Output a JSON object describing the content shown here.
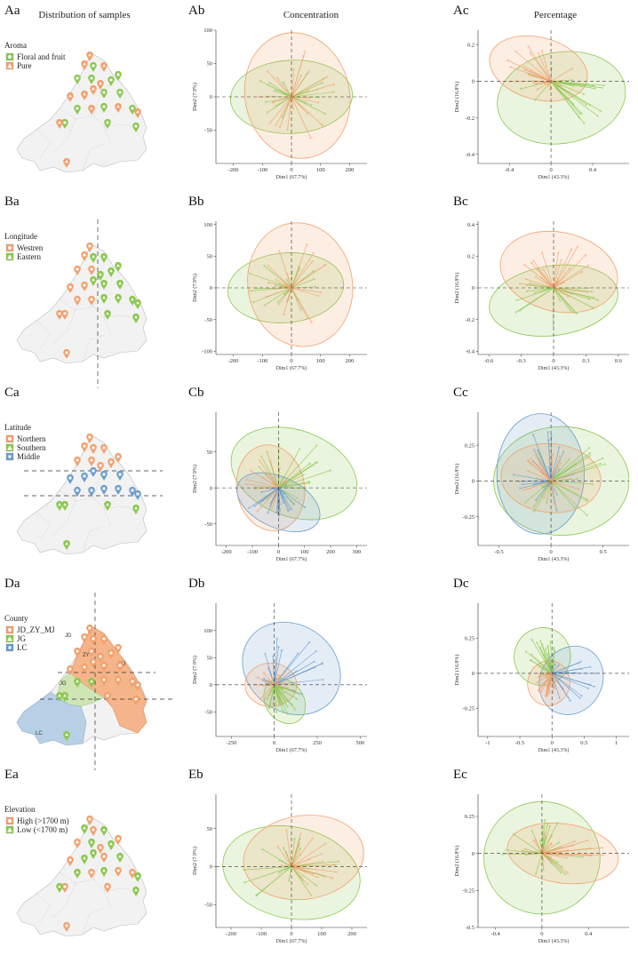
{
  "colors": {
    "orange": "#f2a06c",
    "green": "#8cc850",
    "blue": "#6a9cce",
    "map_fill": "#f2f2f2",
    "map_edge": "#bdbdbd"
  },
  "column_titles": {
    "a": "Distribution of samples",
    "b": "Concentration",
    "c": "Percentage"
  },
  "rows": [
    {
      "id": "A",
      "labels": {
        "a": "Aa",
        "b": "Ab",
        "c": "Ac"
      },
      "legend": {
        "title": "Aroma",
        "entries": [
          {
            "name": "Floral and fruit",
            "color": "green",
            "shape": "circle"
          },
          {
            "name": "Pure",
            "color": "orange",
            "shape": "triangle"
          }
        ]
      }
    },
    {
      "id": "B",
      "labels": {
        "a": "Ba",
        "b": "Bb",
        "c": "Bc"
      },
      "legend": {
        "title": "Longitude",
        "entries": [
          {
            "name": "Westren",
            "color": "orange",
            "shape": "circle"
          },
          {
            "name": "Eastern",
            "color": "green",
            "shape": "triangle"
          }
        ]
      }
    },
    {
      "id": "C",
      "labels": {
        "a": "Ca",
        "b": "Cb",
        "c": "Cc"
      },
      "legend": {
        "title": "Latitude",
        "entries": [
          {
            "name": "Northern",
            "color": "orange",
            "shape": "circle"
          },
          {
            "name": "Southern",
            "color": "green",
            "shape": "triangle"
          },
          {
            "name": "Middle",
            "color": "blue",
            "shape": "square"
          }
        ]
      }
    },
    {
      "id": "D",
      "labels": {
        "a": "Da",
        "b": "Db",
        "c": "Dc"
      },
      "legend": {
        "title": "County",
        "entries": [
          {
            "name": "JD_ZY_MJ",
            "color": "orange",
            "shape": "circle"
          },
          {
            "name": "JG",
            "color": "green",
            "shape": "triangle"
          },
          {
            "name": "LC",
            "color": "blue",
            "shape": "square"
          }
        ]
      },
      "county_labels": [
        "JD",
        "ZY",
        "MJ",
        "JG",
        "LC"
      ]
    },
    {
      "id": "E",
      "labels": {
        "a": "Ea",
        "b": "Eb",
        "c": "Ec"
      },
      "legend": {
        "title": "Elevation",
        "entries": [
          {
            "name": "High (>1700 m)",
            "color": "orange",
            "shape": "circle"
          },
          {
            "name": "Low (<1700 m)",
            "color": "green",
            "shape": "triangle"
          }
        ]
      }
    }
  ],
  "chart_data": [
    {
      "id": "Ab",
      "type": "scatter",
      "title": "Concentration",
      "xlabel": "Dim1 (67.7%)",
      "ylabel": "Dim2 (7.9%)",
      "xlim": [
        -260,
        260
      ],
      "ylim": [
        -100,
        100
      ],
      "xticks": [
        -200,
        -100,
        0,
        100,
        200
      ],
      "yticks": [
        -50,
        0,
        50,
        100
      ],
      "groups": [
        {
          "name": "Floral and fruit",
          "color": "green",
          "center": [
            0,
            0
          ],
          "rx": 210,
          "ry": 55,
          "rot": 3
        },
        {
          "name": "Pure",
          "color": "orange",
          "center": [
            20,
            2
          ],
          "rx": 180,
          "ry": 95,
          "rot": 12
        }
      ]
    },
    {
      "id": "Ac",
      "type": "scatter",
      "title": "Percentage",
      "xlabel": "Dim1 (43.3%)",
      "ylabel": "Dim2 (16.8%)",
      "xlim": [
        -0.7,
        0.75
      ],
      "ylim": [
        -0.45,
        0.28
      ],
      "xticks": [
        -0.4,
        0.0,
        0.4
      ],
      "yticks": [
        -0.4,
        -0.2,
        0.0,
        0.2
      ],
      "groups": [
        {
          "name": "Floral and fruit",
          "color": "green",
          "center": [
            0.1,
            -0.09
          ],
          "rx": 0.62,
          "ry": 0.25,
          "rot": 10
        },
        {
          "name": "Pure",
          "color": "orange",
          "center": [
            -0.12,
            0.07
          ],
          "rx": 0.48,
          "ry": 0.17,
          "rot": -15
        }
      ]
    },
    {
      "id": "Bb",
      "type": "scatter",
      "title": "Concentration",
      "xlabel": "Dim1 (67.7%)",
      "ylabel": "Dim2 (7.9%)",
      "xlim": [
        -260,
        260
      ],
      "ylim": [
        -105,
        105
      ],
      "xticks": [
        -200,
        -100,
        0,
        100,
        200
      ],
      "yticks": [
        -100,
        -50,
        0,
        50,
        100
      ],
      "groups": [
        {
          "name": "Eastern",
          "color": "green",
          "center": [
            -20,
            0
          ],
          "rx": 200,
          "ry": 55,
          "rot": 5
        },
        {
          "name": "Westren",
          "color": "orange",
          "center": [
            30,
            5
          ],
          "rx": 180,
          "ry": 98,
          "rot": 10
        }
      ]
    },
    {
      "id": "Bc",
      "type": "scatter",
      "title": "Percentage",
      "xlabel": "Dim1 (43.3%)",
      "ylabel": "Dim2 (16.8%)",
      "xlim": [
        -0.7,
        0.7
      ],
      "ylim": [
        -0.42,
        0.42
      ],
      "xticks": [
        -0.6,
        -0.3,
        0.0,
        0.3,
        0.6
      ],
      "yticks": [
        -0.4,
        -0.2,
        0.0,
        0.2,
        0.4
      ],
      "groups": [
        {
          "name": "Eastern",
          "color": "green",
          "center": [
            0.0,
            -0.08
          ],
          "rx": 0.6,
          "ry": 0.22,
          "rot": 8
        },
        {
          "name": "Westren",
          "color": "orange",
          "center": [
            0.05,
            0.1
          ],
          "rx": 0.55,
          "ry": 0.25,
          "rot": -12
        }
      ]
    },
    {
      "id": "Cb",
      "type": "scatter",
      "title": "Concentration",
      "xlabel": "Dim1 (67.7%)",
      "ylabel": "Dim2 (7.9%)",
      "xlim": [
        -240,
        340
      ],
      "ylim": [
        -80,
        105
      ],
      "xticks": [
        -200,
        -100,
        0,
        100,
        200,
        300
      ],
      "yticks": [
        -50,
        0,
        50
      ],
      "groups": [
        {
          "name": "Southern",
          "color": "green",
          "center": [
            60,
            20
          ],
          "rx": 250,
          "ry": 60,
          "rot": -20
        },
        {
          "name": "Northern",
          "color": "orange",
          "center": [
            -30,
            0
          ],
          "rx": 130,
          "ry": 60,
          "rot": 10
        },
        {
          "name": "Middle",
          "color": "blue",
          "center": [
            0,
            -20
          ],
          "rx": 170,
          "ry": 35,
          "rot": -25
        }
      ]
    },
    {
      "id": "Cc",
      "type": "scatter",
      "title": "Percentage",
      "xlabel": "Dim1 (43.3%)",
      "ylabel": "Dim2 (16.8%)",
      "xlim": [
        -0.7,
        0.75
      ],
      "ylim": [
        -0.45,
        0.48
      ],
      "xticks": [
        -0.5,
        0.0,
        0.5
      ],
      "yticks": [
        -0.25,
        0.0,
        0.25
      ],
      "groups": [
        {
          "name": "Southern",
          "color": "green",
          "center": [
            0.1,
            0.0
          ],
          "rx": 0.65,
          "ry": 0.38,
          "rot": 0
        },
        {
          "name": "Middle",
          "color": "blue",
          "center": [
            -0.1,
            0.05
          ],
          "rx": 0.42,
          "ry": 0.42,
          "rot": 0
        },
        {
          "name": "Northern",
          "color": "orange",
          "center": [
            0.0,
            0.02
          ],
          "rx": 0.48,
          "ry": 0.24,
          "rot": -5
        }
      ]
    },
    {
      "id": "Db",
      "type": "scatter",
      "title": "Concentration",
      "xlabel": "Dim1 (67.7%)",
      "ylabel": "Dim2 (7.9%)",
      "xlim": [
        -340,
        540
      ],
      "ylim": [
        -95,
        150
      ],
      "xticks": [
        -250,
        0,
        250,
        500
      ],
      "yticks": [
        -50,
        0,
        50,
        100
      ],
      "groups": [
        {
          "name": "LC",
          "color": "blue",
          "center": [
            100,
            30
          ],
          "rx": 300,
          "ry": 80,
          "rot": -35
        },
        {
          "name": "JD_ZY_MJ",
          "color": "orange",
          "center": [
            -20,
            0
          ],
          "rx": 150,
          "ry": 40,
          "rot": 0
        },
        {
          "name": "JG",
          "color": "green",
          "center": [
            60,
            -30
          ],
          "rx": 140,
          "ry": 35,
          "rot": -55
        }
      ]
    },
    {
      "id": "Dc",
      "type": "scatter",
      "title": "Percentage",
      "xlabel": "Dim1 (43.3%)",
      "ylabel": "Dim2 (16.8%)",
      "xlim": [
        -1.15,
        1.2
      ],
      "ylim": [
        -0.45,
        0.5
      ],
      "xticks": [
        -1.0,
        -0.5,
        0.0,
        0.5,
        1.0
      ],
      "yticks": [
        -0.25,
        0.0,
        0.25
      ],
      "groups": [
        {
          "name": "JG",
          "color": "green",
          "center": [
            -0.15,
            0.12
          ],
          "rx": 0.45,
          "ry": 0.2,
          "rot": 70
        },
        {
          "name": "LC",
          "color": "blue",
          "center": [
            0.3,
            -0.05
          ],
          "rx": 0.55,
          "ry": 0.22,
          "rot": 60
        },
        {
          "name": "JD_ZY_MJ",
          "color": "orange",
          "center": [
            -0.05,
            -0.07
          ],
          "rx": 0.35,
          "ry": 0.15,
          "rot": 75
        }
      ]
    },
    {
      "id": "Eb",
      "type": "scatter",
      "title": "Concentration",
      "xlabel": "Dim1 (67.7%)",
      "ylabel": "Dim2 (7.9%)",
      "xlim": [
        -250,
        250
      ],
      "ylim": [
        -80,
        95
      ],
      "xticks": [
        -200,
        -100,
        0,
        100,
        200
      ],
      "yticks": [
        -50,
        0,
        50
      ],
      "groups": [
        {
          "name": "Low (<1700 m)",
          "color": "green",
          "center": [
            0,
            -8
          ],
          "rx": 230,
          "ry": 60,
          "rot": -12
        },
        {
          "name": "High (>1700 m)",
          "color": "orange",
          "center": [
            40,
            12
          ],
          "rx": 200,
          "ry": 55,
          "rot": 8
        }
      ]
    },
    {
      "id": "Ec",
      "type": "scatter",
      "title": "Percentage",
      "xlabel": "Dim1 (43.3%)",
      "ylabel": "Dim2 (16.8%)",
      "xlim": [
        -0.55,
        0.75
      ],
      "ylim": [
        -0.5,
        0.4
      ],
      "xticks": [
        -0.4,
        0.0,
        0.4
      ],
      "yticks": [
        -0.5,
        -0.25,
        0.0,
        0.25
      ],
      "groups": [
        {
          "name": "Low (<1700 m)",
          "color": "green",
          "center": [
            0.0,
            -0.03
          ],
          "rx": 0.5,
          "ry": 0.38,
          "rot": 0
        },
        {
          "name": "High (>1700 m)",
          "color": "orange",
          "center": [
            0.18,
            0.0
          ],
          "rx": 0.48,
          "ry": 0.2,
          "rot": -8
        }
      ]
    }
  ]
}
